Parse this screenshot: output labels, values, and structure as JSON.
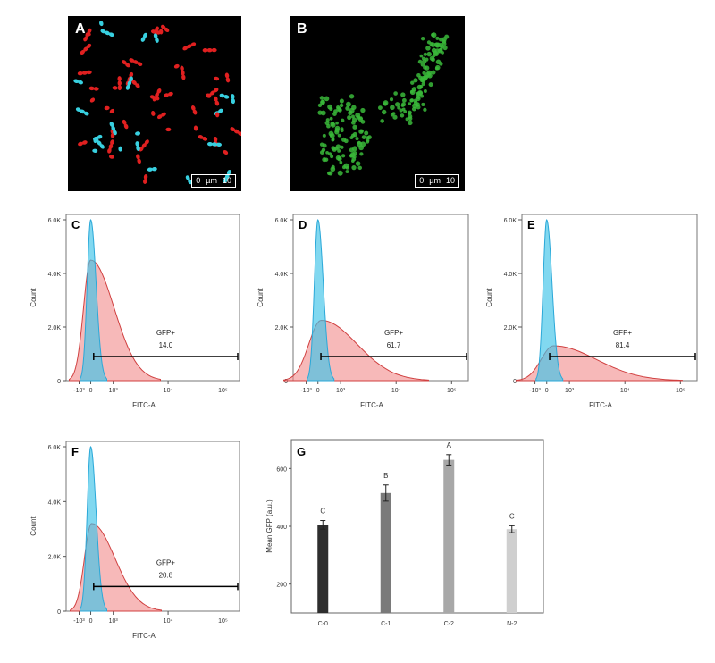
{
  "panels": {
    "A": {
      "label": "A",
      "scalebar": {
        "start": "0",
        "unit": "µm",
        "end": "10"
      }
    },
    "B": {
      "label": "B",
      "scalebar": {
        "start": "0",
        "unit": "µm",
        "end": "10"
      }
    }
  },
  "colors": {
    "cyan": "#3ec3e8",
    "red_hist": "#f08080",
    "red_cells": "#e02020",
    "cyan_cells": "#38d0e0",
    "green_cells": "#3ab83a",
    "bar_dark": "#2e2e2e"
  },
  "chart_data": [
    {
      "type": "area",
      "panel": "C",
      "xlabel": "FITC-A",
      "ylabel": "Count",
      "yticks": [
        "0",
        "2.0K",
        "4.0K",
        "6.0K"
      ],
      "xticks": [
        "-10³",
        "0",
        "10³",
        "10⁴",
        "10⁵"
      ],
      "ylim": [
        0,
        6000
      ],
      "gate": {
        "name": "GFP+",
        "value": "14.0"
      },
      "series": [
        {
          "color": "cyan",
          "peak_x": 0,
          "peak_y": 6000
        },
        {
          "color": "red",
          "peak_x": 0,
          "peak_y": 4500
        }
      ]
    },
    {
      "type": "area",
      "panel": "D",
      "xlabel": "FITC-A",
      "ylabel": "Count",
      "yticks": [
        "0",
        "2.0K",
        "4.0K",
        "6.0K"
      ],
      "xticks": [
        "-10³",
        "0",
        "10³",
        "10⁴",
        "10⁵"
      ],
      "ylim": [
        0,
        6000
      ],
      "gate": {
        "name": "GFP+",
        "value": "61.7"
      },
      "series": [
        {
          "color": "cyan",
          "peak_x": 0,
          "peak_y": 6000
        },
        {
          "color": "red",
          "peak_x": 150,
          "peak_y": 2250
        }
      ]
    },
    {
      "type": "area",
      "panel": "E",
      "xlabel": "FITC-A",
      "ylabel": "Count",
      "yticks": [
        "0",
        "2.0K",
        "4.0K",
        "6.0K"
      ],
      "xticks": [
        "-10³",
        "0",
        "10³",
        "10⁴",
        "10⁵"
      ],
      "ylim": [
        0,
        6000
      ],
      "gate": {
        "name": "GFP+",
        "value": "81.4"
      },
      "series": [
        {
          "color": "cyan",
          "peak_x": 0,
          "peak_y": 6000
        },
        {
          "color": "red",
          "peak_x": 300,
          "peak_y": 1300
        }
      ]
    },
    {
      "type": "area",
      "panel": "F",
      "xlabel": "FITC-A",
      "ylabel": "Count",
      "yticks": [
        "0",
        "2.0K",
        "4.0K",
        "6.0K"
      ],
      "xticks": [
        "-10³",
        "0",
        "10³",
        "10⁴",
        "10⁵"
      ],
      "ylim": [
        0,
        6000
      ],
      "gate": {
        "name": "GFP+",
        "value": "20.8"
      },
      "series": [
        {
          "color": "cyan",
          "peak_x": 0,
          "peak_y": 6000
        },
        {
          "color": "red",
          "peak_x": 40,
          "peak_y": 3200
        }
      ]
    },
    {
      "type": "bar",
      "panel": "G",
      "ylabel": "Mean GFP (a.u.)",
      "ylim": [
        100,
        700
      ],
      "yticks": [
        200,
        400,
        600
      ],
      "categories": [
        "C-0",
        "C-1",
        "C-2",
        "N-2"
      ],
      "values": [
        405,
        515,
        630,
        390
      ],
      "errors": [
        15,
        28,
        18,
        12
      ],
      "letters": [
        "C",
        "B",
        "A",
        "C"
      ],
      "bar_colors": [
        "#2e2e2e",
        "#7a7a7a",
        "#a8a8a8",
        "#cfcfcf"
      ]
    }
  ]
}
